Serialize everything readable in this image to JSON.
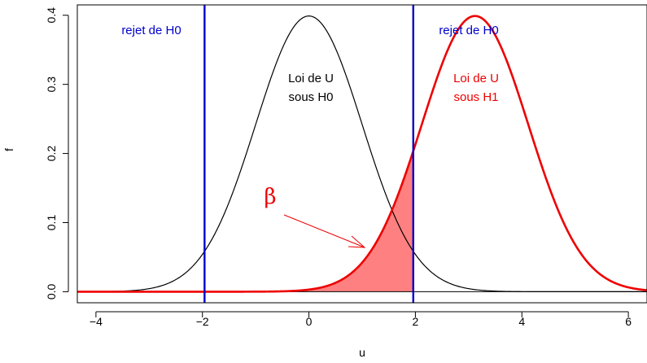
{
  "chart_data": {
    "type": "line",
    "title": "",
    "xlabel": "u",
    "ylabel": "f",
    "xlim": [
      -4.35,
      6.35
    ],
    "ylim": [
      -0.016,
      0.415
    ],
    "x_ticks": [
      -4,
      -2,
      0,
      2,
      4,
      6
    ],
    "x_tick_labels": [
      "−4",
      "−2",
      "0",
      "2",
      "4",
      "6"
    ],
    "y_ticks": [
      0.0,
      0.1,
      0.2,
      0.3,
      0.4
    ],
    "y_tick_labels": [
      "0.0",
      "0.1",
      "0.2",
      "0.3",
      "0.4"
    ],
    "series": [
      {
        "name": "Loi de U sous H0",
        "distribution": "normal",
        "mean": 0,
        "sd": 1,
        "color": "#000000"
      },
      {
        "name": "Loi de U sous H1",
        "distribution": "normal",
        "mean": 3.12,
        "sd": 1,
        "color": "#ee0000"
      }
    ],
    "critical_values": [
      -1.96,
      1.96
    ],
    "critical_color": "#0000cc",
    "shaded_region": {
      "label": "β",
      "from": -4.35,
      "to": 1.96,
      "under": "Loi de U sous H1",
      "color": "#ff8080"
    },
    "annotations": {
      "reject_left": "rejet de H0",
      "reject_right": "rejet de H0",
      "h0_line1": "Loi de U",
      "h0_line2": "sous H0",
      "h1_line1": "Loi de U",
      "h1_line2": "sous H1",
      "beta": "β"
    },
    "grid": false,
    "baseline": 0
  }
}
